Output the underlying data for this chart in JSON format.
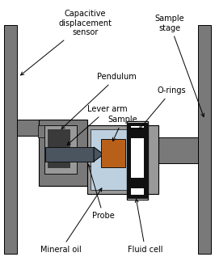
{
  "fig_width": 2.66,
  "fig_height": 3.44,
  "dpi": 100,
  "colors": {
    "gray_dark": "#797979",
    "gray_medium": "#999999",
    "gray_light": "#bbbbbb",
    "gray_very_dark": "#3a3a3a",
    "black": "#111111",
    "white": "#ffffff",
    "light_blue": "#bdd0df",
    "brown_orange": "#b8601a",
    "dark_gray_blue": "#4a5560",
    "mid_gray": "#666666"
  },
  "labels": {
    "capacitive": "Capacitive\ndisplacement\nsensor",
    "pendulum": "Pendulum",
    "lever_arm": "Lever arm",
    "sample": "Sample",
    "probe": "Probe",
    "mineral_oil": "Mineral oil",
    "fluid_cell": "Fluid cell",
    "o_rings": "O-rings",
    "sample_stage": "Sample\nstage"
  },
  "fontsize": 7.0
}
